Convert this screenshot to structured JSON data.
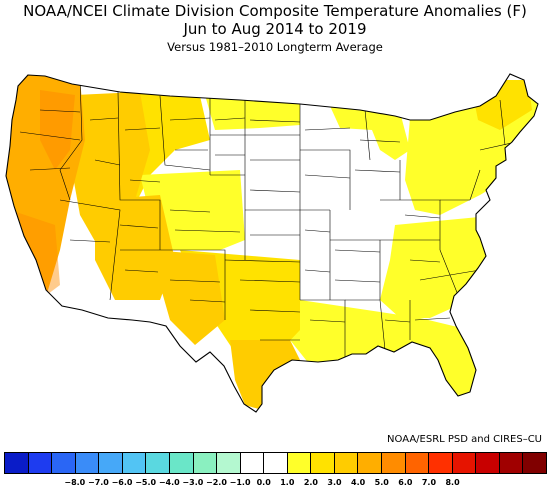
{
  "title": {
    "line1": "NOAA/NCEI Climate Division Composite Temperature Anomalies (F)",
    "line2": "Jun to Aug 2014 to 2019",
    "line3": "Versus 1981–2010 Longterm Average"
  },
  "credit": "NOAA/ESRL PSD and CIRES–CU",
  "legend": {
    "colors": [
      "#0a1cc8",
      "#1e3cf0",
      "#2a66f5",
      "#3a8cf8",
      "#46a8f8",
      "#52c4f4",
      "#5ad8e0",
      "#6ae6c8",
      "#8af0c0",
      "#b4f8d0",
      "#ffffff",
      "#ffffff",
      "#ffff2a",
      "#ffe200",
      "#ffcc00",
      "#ffae00",
      "#ff8c00",
      "#ff6400",
      "#ff3000",
      "#e61400",
      "#c80000",
      "#a00000",
      "#800000"
    ],
    "ticks": [
      "−8.0",
      "−7.0",
      "−6.0",
      "−5.0",
      "−4.0",
      "−3.0",
      "−2.0",
      "−1.0",
      "0.0",
      "1.0",
      "2.0",
      "3.0",
      "4.0",
      "5.0",
      "6.0",
      "7.0",
      "8.0"
    ]
  },
  "map": {
    "outline_color": "#000000",
    "anomaly_colors": {
      "neutral": "#ffffff",
      "plus_0_1": "#ffff2a",
      "plus_1_2": "#ffe200",
      "plus_2_3": "#ffcc00",
      "plus_3_4": "#ffae00",
      "plus_4_5": "#ff8c00"
    }
  }
}
